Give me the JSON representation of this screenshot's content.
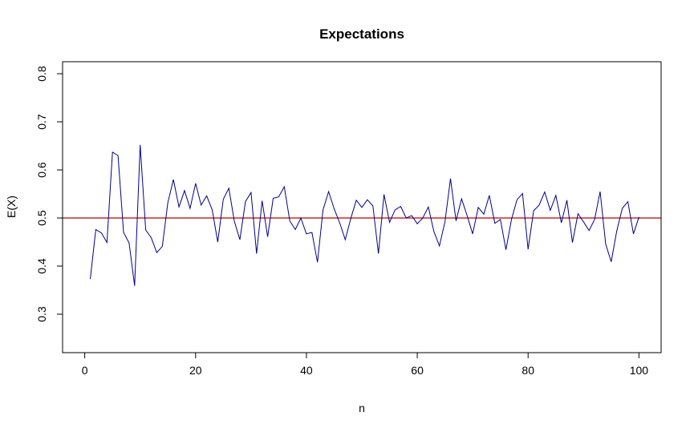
{
  "chart_data": {
    "type": "line",
    "title": "Expectations",
    "xlabel": "n",
    "ylabel": "E(X)",
    "xlim": [
      -4,
      104
    ],
    "ylim": [
      0.22,
      0.825
    ],
    "x_ticks": [
      0,
      20,
      40,
      60,
      80,
      100
    ],
    "y_ticks": [
      0.3,
      0.4,
      0.5,
      0.6,
      0.7,
      0.8
    ],
    "grid": false,
    "legend": "none",
    "series": [
      {
        "color": "#00008b",
        "x": [
          1,
          2,
          3,
          4,
          5,
          6,
          7,
          8,
          9,
          10,
          11,
          12,
          13,
          14,
          15,
          16,
          17,
          18,
          19,
          20,
          21,
          22,
          23,
          24,
          25,
          26,
          27,
          28,
          29,
          30,
          31,
          32,
          33,
          34,
          35,
          36,
          37,
          38,
          39,
          40,
          41,
          42,
          43,
          44,
          45,
          46,
          47,
          48,
          49,
          50,
          51,
          52,
          53,
          54,
          55,
          56,
          57,
          58,
          59,
          60,
          61,
          62,
          63,
          64,
          65,
          66,
          67,
          68,
          69,
          70,
          71,
          72,
          73,
          74,
          75,
          76,
          77,
          78,
          79,
          80,
          81,
          82,
          83,
          84,
          85,
          86,
          87,
          88,
          89,
          90,
          91,
          92,
          93,
          94,
          95,
          96,
          97,
          98,
          99,
          100
        ],
        "values": [
          0.373,
          0.476,
          0.469,
          0.449,
          0.637,
          0.63,
          0.47,
          0.448,
          0.359,
          0.652,
          0.475,
          0.459,
          0.428,
          0.441,
          0.532,
          0.58,
          0.523,
          0.557,
          0.52,
          0.572,
          0.527,
          0.546,
          0.517,
          0.45,
          0.539,
          0.562,
          0.493,
          0.455,
          0.534,
          0.553,
          0.426,
          0.536,
          0.461,
          0.541,
          0.544,
          0.565,
          0.494,
          0.476,
          0.5,
          0.467,
          0.47,
          0.408,
          0.517,
          0.555,
          0.519,
          0.49,
          0.455,
          0.499,
          0.537,
          0.522,
          0.538,
          0.525,
          0.426,
          0.549,
          0.491,
          0.517,
          0.524,
          0.5,
          0.505,
          0.488,
          0.5,
          0.523,
          0.472,
          0.442,
          0.492,
          0.582,
          0.494,
          0.54,
          0.505,
          0.467,
          0.522,
          0.508,
          0.547,
          0.489,
          0.497,
          0.434,
          0.497,
          0.538,
          0.551,
          0.435,
          0.515,
          0.527,
          0.554,
          0.516,
          0.547,
          0.49,
          0.537,
          0.449,
          0.509,
          0.492,
          0.474,
          0.497,
          0.555,
          0.446,
          0.409,
          0.473,
          0.52,
          0.534,
          0.467,
          0.502
        ]
      }
    ],
    "reference_line": {
      "y": 0.5,
      "color": "#c00000"
    }
  }
}
